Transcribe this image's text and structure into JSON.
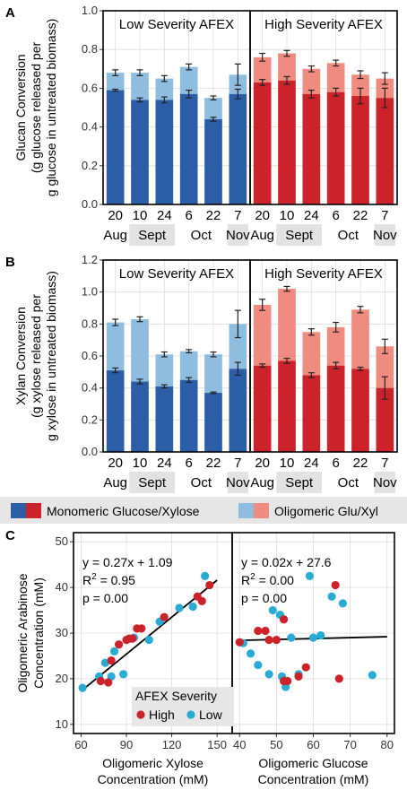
{
  "chart_data": [
    {
      "panel": "A",
      "type": "bar",
      "stacked": true,
      "ylabel": [
        "Glucan Conversion",
        "(g glucose released per",
        "g glucose in untreated biomass)"
      ],
      "ylim": [
        0,
        1.0
      ],
      "yticks": [
        "0.0",
        "0.2",
        "0.4",
        "0.6",
        "0.8",
        "1.0"
      ],
      "x_day_labels": [
        "20",
        "10",
        "24",
        "6",
        "22",
        "7"
      ],
      "x_month_labels": [
        "Aug",
        "Sept",
        "Oct",
        "Nov"
      ],
      "facets": [
        {
          "label": "Low Severity AFEX",
          "color_mono": "#2b5ea7",
          "color_oligo": "#8fbde0",
          "monomeric": [
            0.59,
            0.54,
            0.54,
            0.57,
            0.44,
            0.57
          ],
          "mono_err": [
            0.005,
            0.01,
            0.015,
            0.02,
            0.01,
            0.025
          ],
          "total": [
            0.68,
            0.68,
            0.65,
            0.71,
            0.55,
            0.67
          ],
          "total_err": [
            0.015,
            0.015,
            0.015,
            0.015,
            0.01,
            0.055
          ]
        },
        {
          "label": "High Severity AFEX",
          "color_mono": "#cc2229",
          "color_oligo": "#f08b80",
          "monomeric": [
            0.63,
            0.64,
            0.57,
            0.58,
            0.56,
            0.55
          ],
          "mono_err": [
            0.015,
            0.02,
            0.02,
            0.02,
            0.04,
            0.05
          ],
          "total": [
            0.76,
            0.78,
            0.7,
            0.73,
            0.67,
            0.65
          ],
          "total_err": [
            0.02,
            0.015,
            0.015,
            0.015,
            0.02,
            0.03
          ]
        }
      ]
    },
    {
      "panel": "B",
      "type": "bar",
      "stacked": true,
      "ylabel": [
        "Xylan Conversion",
        "(g xylose released per",
        "g xylose in untreated biomass)"
      ],
      "ylim": [
        0,
        1.2
      ],
      "yticks": [
        "0.0",
        "0.2",
        "0.4",
        "0.6",
        "0.8",
        "1.0",
        "1.2"
      ],
      "x_day_labels": [
        "20",
        "10",
        "24",
        "6",
        "22",
        "7"
      ],
      "x_month_labels": [
        "Aug",
        "Sept",
        "Oct",
        "Nov"
      ],
      "facets": [
        {
          "label": "Low Severity AFEX",
          "color_mono": "#2b5ea7",
          "color_oligo": "#8fbde0",
          "monomeric": [
            0.51,
            0.44,
            0.41,
            0.45,
            0.37,
            0.52
          ],
          "mono_err": [
            0.015,
            0.015,
            0.01,
            0.015,
            0.005,
            0.04
          ],
          "total": [
            0.81,
            0.83,
            0.61,
            0.63,
            0.61,
            0.8
          ],
          "total_err": [
            0.02,
            0.015,
            0.015,
            0.01,
            0.015,
            0.085
          ]
        },
        {
          "label": "High Severity AFEX",
          "color_mono": "#cc2229",
          "color_oligo": "#f08b80",
          "monomeric": [
            0.54,
            0.57,
            0.48,
            0.54,
            0.52,
            0.4
          ],
          "mono_err": [
            0.01,
            0.015,
            0.015,
            0.02,
            0.01,
            0.07
          ],
          "total": [
            0.92,
            1.02,
            0.75,
            0.78,
            0.89,
            0.66
          ],
          "total_err": [
            0.035,
            0.015,
            0.02,
            0.03,
            0.02,
            0.045
          ]
        }
      ]
    },
    {
      "panel": "C",
      "type": "scatter",
      "ylabel": [
        "Oligomeric Arabinose",
        "Concentration (mM)"
      ],
      "ylim": [
        8,
        52
      ],
      "yticks": [
        10,
        20,
        30,
        40,
        50
      ],
      "legend_title": "AFEX Severity",
      "legend_position": "bottom-left",
      "color_high": "#cc2229",
      "color_low": "#29abd4",
      "legend_labels": [
        "High",
        "Low"
      ],
      "subplots": [
        {
          "xlabel": [
            "Oligomeric Xylose",
            "Concentration (mM)"
          ],
          "xlim": [
            55,
            160
          ],
          "xticks": [
            60,
            90,
            120,
            150
          ],
          "stats": [
            "y = 0.27x + 1.09",
            "R",
            "2",
            " = 0.95",
            "p = 0.00"
          ],
          "fit": {
            "slope": 0.27,
            "intercept": 1.09,
            "x_range": [
              60,
              150
            ]
          },
          "high": [
            [
              73,
              19.5
            ],
            [
              78,
              19.2
            ],
            [
              80,
              24.0
            ],
            [
              85,
              27.5
            ],
            [
              90,
              28.5
            ],
            [
              92,
              28.8
            ],
            [
              94,
              28.8
            ],
            [
              97,
              31.0
            ],
            [
              100,
              31.0
            ],
            [
              115,
              33.5
            ],
            [
              137,
              38.0
            ],
            [
              140,
              37.0
            ],
            [
              145,
              40.5
            ]
          ],
          "low": [
            [
              61,
              18.0
            ],
            [
              72,
              20.5
            ],
            [
              76,
              23.5
            ],
            [
              80,
              20.5
            ],
            [
              82,
              26.0
            ],
            [
              88,
              21.0
            ],
            [
              95,
              29.0
            ],
            [
              105,
              28.5
            ],
            [
              112,
              32.5
            ],
            [
              125,
              35.5
            ],
            [
              134,
              35.8
            ],
            [
              142,
              42.5
            ]
          ]
        },
        {
          "xlabel": [
            "Oligomeric Glucose",
            "Concentration (mM)"
          ],
          "xlim": [
            38,
            82
          ],
          "xticks": [
            40,
            50,
            60,
            70,
            80
          ],
          "stats": [
            "y = 0.02x + 27.6",
            "R",
            "2",
            " = 0.00",
            "p = 0.00"
          ],
          "fit": {
            "slope": 0.02,
            "intercept": 27.6,
            "x_range": [
              40,
              80
            ]
          },
          "high": [
            [
              40.0,
              28.0
            ],
            [
              45.0,
              30.5
            ],
            [
              47.0,
              30.5
            ],
            [
              48.0,
              28.5
            ],
            [
              50.0,
              28.5
            ],
            [
              52.0,
              19.5
            ],
            [
              52.0,
              33.0
            ],
            [
              53.0,
              19.5
            ],
            [
              56.0,
              20.5
            ],
            [
              58.0,
              22.5
            ],
            [
              66.0,
              40.5
            ],
            [
              67.0,
              20.0
            ]
          ],
          "low": [
            [
              41.0,
              27.8
            ],
            [
              43.0,
              25.5
            ],
            [
              45.0,
              23.0
            ],
            [
              48.0,
              21.0
            ],
            [
              49.0,
              35.0
            ],
            [
              51.0,
              34.0
            ],
            [
              51.5,
              20.5
            ],
            [
              52.5,
              18.2
            ],
            [
              54.0,
              29.0
            ],
            [
              56.0,
              21.0
            ],
            [
              59.0,
              42.5
            ],
            [
              60.0,
              29.0
            ],
            [
              62.0,
              29.5
            ],
            [
              65.0,
              38.0
            ],
            [
              68.0,
              36.5
            ],
            [
              76.0,
              20.8
            ]
          ]
        }
      ]
    }
  ],
  "legend": {
    "monomeric": "Monomeric Glucose/Xylose",
    "oligomeric": "Oligomeric Glu/Xyl",
    "mono_colors": [
      "#2b5ea7",
      "#cc2229"
    ],
    "oligo_colors": [
      "#8fbde0",
      "#f08b80"
    ]
  },
  "panel_labels": [
    "A",
    "B",
    "C"
  ]
}
